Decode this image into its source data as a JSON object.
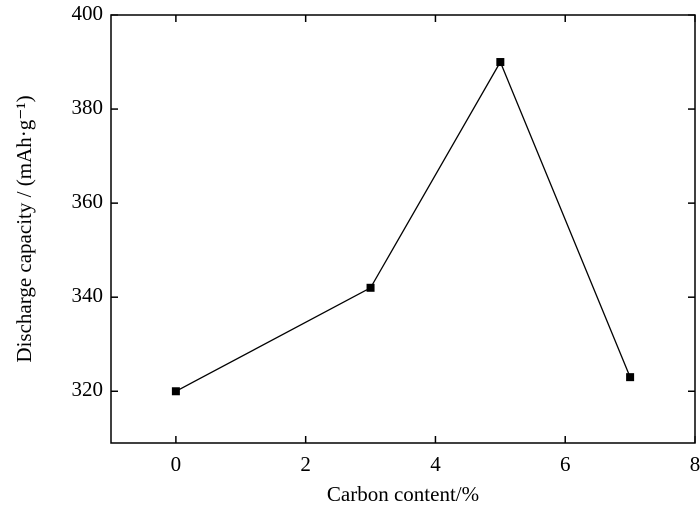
{
  "chart_data": {
    "type": "line",
    "x_label": "Carbon content/%",
    "y_label": "Discharge capacity / (mAh·g⁻¹)",
    "x": [
      0,
      3,
      5,
      7
    ],
    "series": [
      {
        "color": "#000000",
        "values": [
          320,
          342,
          390,
          323
        ]
      }
    ],
    "xlim": [
      -1,
      8
    ],
    "xticks": [
      0,
      2,
      4,
      6,
      8
    ],
    "ylim": [
      309,
      400
    ],
    "yticks": [
      320,
      340,
      360,
      380,
      400
    ]
  }
}
